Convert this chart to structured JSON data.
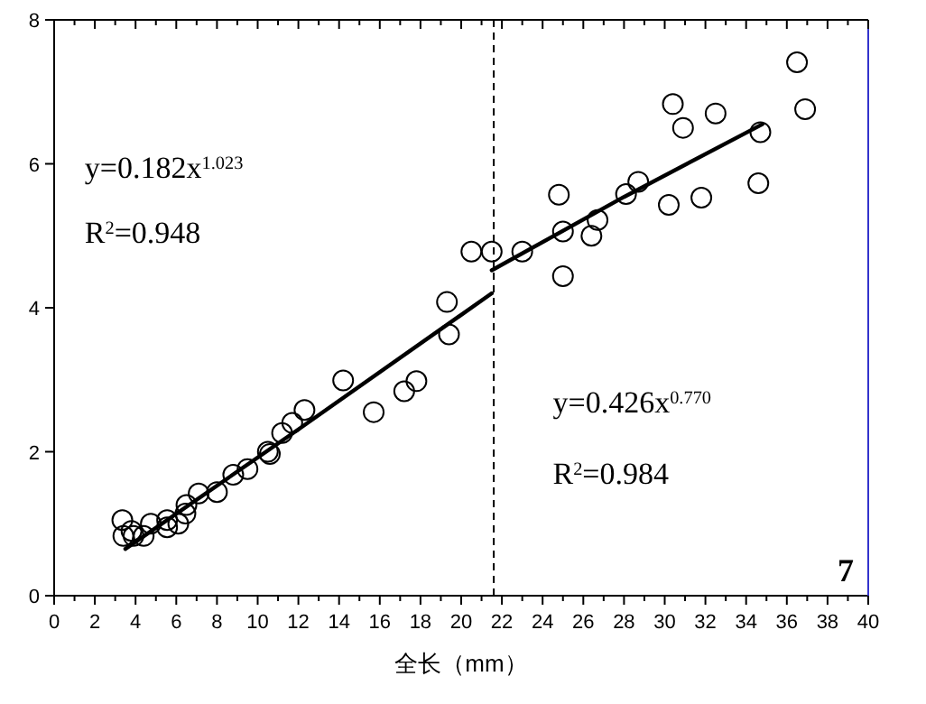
{
  "chart_data": {
    "type": "scatter",
    "xlabel": "全长（mm）",
    "xlim": [
      0,
      40
    ],
    "xticks": [
      0,
      2,
      4,
      6,
      8,
      10,
      12,
      14,
      16,
      18,
      20,
      22,
      24,
      26,
      28,
      30,
      32,
      34,
      36,
      38,
      40
    ],
    "ylim": [
      0,
      8
    ],
    "yticks": [
      0,
      2,
      4,
      6,
      8
    ],
    "series": [
      {
        "type": "scatter",
        "marker": "circle",
        "color": "#000000",
        "x": [
          3.35,
          3.4,
          3.8,
          3.9,
          4.4,
          4.75,
          5.55,
          5.55,
          6.1,
          6.45,
          6.5,
          7.1,
          8.0,
          8.8,
          9.5,
          10.5,
          10.6,
          11.2,
          11.7,
          12.3,
          14.2,
          15.7,
          17.2,
          17.8,
          19.3,
          19.4,
          20.5,
          21.5,
          23.0,
          24.8,
          25.0,
          25.0,
          26.4,
          26.7,
          28.1,
          28.7,
          30.2,
          30.4,
          30.9,
          31.8,
          32.5,
          34.7,
          34.6,
          36.5,
          36.9
        ],
        "values": [
          1.05,
          0.83,
          0.9,
          0.83,
          0.83,
          1.0,
          1.05,
          0.95,
          1.0,
          1.14,
          1.26,
          1.42,
          1.44,
          1.68,
          1.76,
          2.0,
          1.97,
          2.26,
          2.4,
          2.58,
          2.99,
          2.55,
          2.84,
          2.98,
          4.08,
          3.63,
          4.78,
          4.78,
          4.78,
          5.57,
          5.06,
          4.44,
          5.0,
          5.22,
          5.58,
          5.75,
          5.43,
          6.83,
          6.5,
          5.53,
          6.7,
          6.44,
          5.73,
          7.41,
          6.76
        ]
      },
      {
        "type": "line",
        "color": "#000000",
        "x": [
          3.5,
          12,
          21.5
        ],
        "values": [
          0.65,
          2.31,
          4.2
        ]
      },
      {
        "type": "line",
        "color": "#000000",
        "x": [
          21.5,
          28,
          34.8
        ],
        "values": [
          4.52,
          5.54,
          6.55
        ]
      }
    ],
    "ref_lines": [
      {
        "axis": "x",
        "value": 21.6,
        "line_style": "dashed",
        "color": "#000000"
      }
    ],
    "annotations": [
      "y=0.182x$^{1.023}$",
      "R$^{2}$=0.948",
      "y=0.426x$^{0.770}$",
      "R$^{2}$=0.984",
      "7"
    ]
  }
}
